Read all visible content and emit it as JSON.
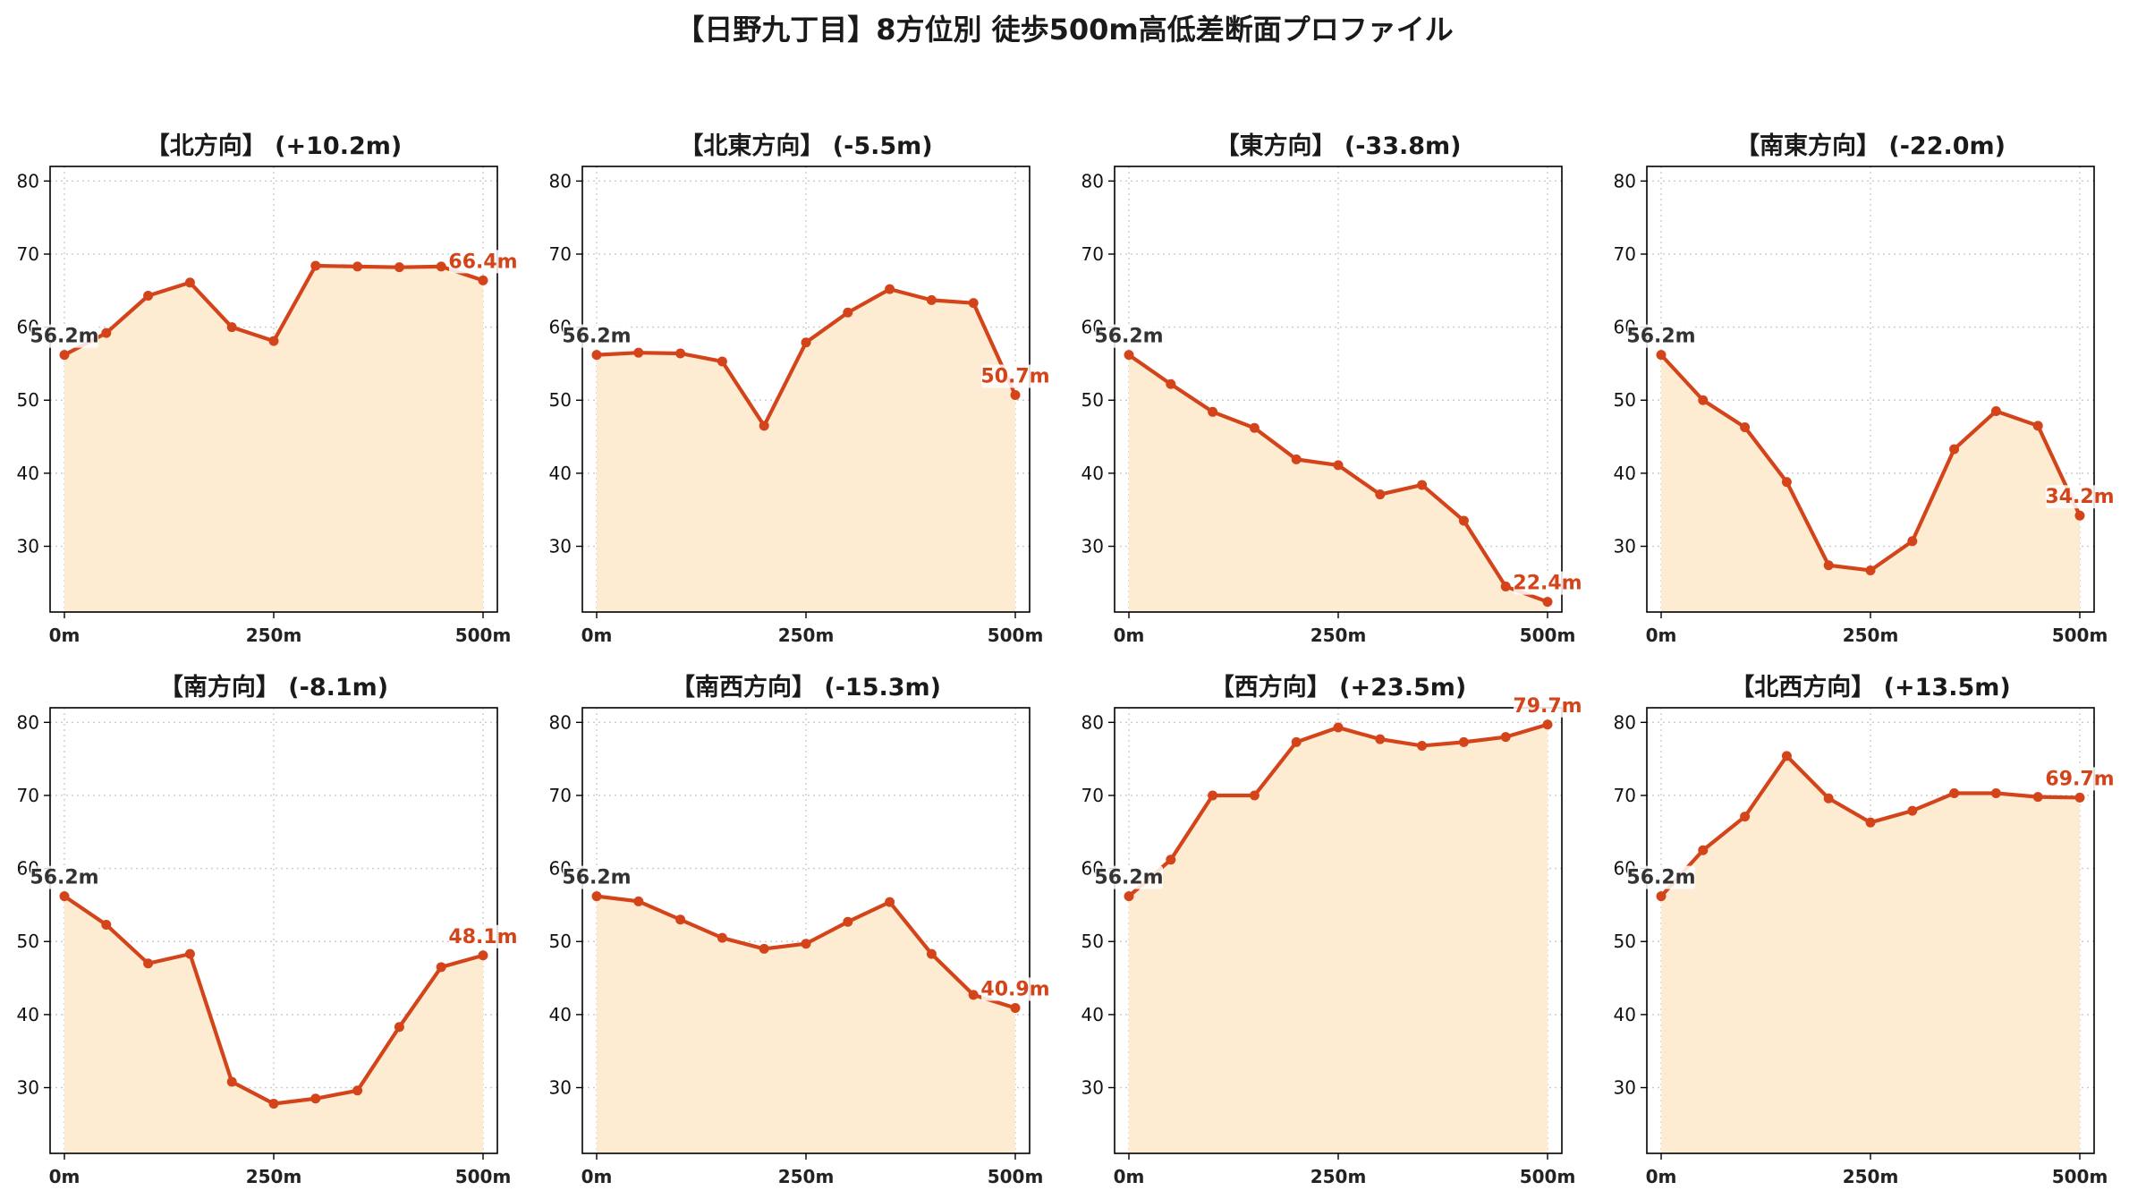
{
  "title": "【日野九丁目】8方位別 徒歩500m高低差断面プロファイル",
  "colors": {
    "line": "#d4441a",
    "fill": "#fdebd2",
    "start_label": "#333333",
    "end_label": "#d4441a",
    "grid": "#cccccc",
    "axis": "#000000"
  },
  "chart_data": [
    {
      "type": "area",
      "title": "【北方向】 (+10.2m)",
      "x": [
        0,
        50,
        100,
        150,
        200,
        250,
        300,
        350,
        400,
        450,
        500
      ],
      "y": [
        56.2,
        59.2,
        64.3,
        66.1,
        60.0,
        58.1,
        68.4,
        68.3,
        68.2,
        68.3,
        66.4
      ],
      "start_label": "56.2m",
      "end_label": "66.4m",
      "xticks": [
        "0m",
        "250m",
        "500m"
      ],
      "yticks": [
        30,
        40,
        50,
        60,
        70,
        80
      ],
      "xlim": [
        0,
        500
      ],
      "ylim": [
        21,
        82
      ],
      "grid": true
    },
    {
      "type": "area",
      "title": "【北東方向】 (-5.5m)",
      "x": [
        0,
        50,
        100,
        150,
        200,
        250,
        300,
        350,
        400,
        450,
        500
      ],
      "y": [
        56.2,
        56.5,
        56.4,
        55.3,
        46.5,
        57.9,
        62.0,
        65.2,
        63.7,
        63.3,
        50.7
      ],
      "start_label": "56.2m",
      "end_label": "50.7m",
      "xticks": [
        "0m",
        "250m",
        "500m"
      ],
      "yticks": [
        30,
        40,
        50,
        60,
        70,
        80
      ],
      "xlim": [
        0,
        500
      ],
      "ylim": [
        21,
        82
      ],
      "grid": true
    },
    {
      "type": "area",
      "title": "【東方向】 (-33.8m)",
      "x": [
        0,
        50,
        100,
        150,
        200,
        250,
        300,
        350,
        400,
        450,
        500
      ],
      "y": [
        56.2,
        52.2,
        48.4,
        46.2,
        41.9,
        41.1,
        37.1,
        38.4,
        33.5,
        24.5,
        22.4
      ],
      "start_label": "56.2m",
      "end_label": "22.4m",
      "xticks": [
        "0m",
        "250m",
        "500m"
      ],
      "yticks": [
        30,
        40,
        50,
        60,
        70,
        80
      ],
      "xlim": [
        0,
        500
      ],
      "ylim": [
        21,
        82
      ],
      "grid": true
    },
    {
      "type": "area",
      "title": "【南東方向】 (-22.0m)",
      "x": [
        0,
        50,
        100,
        150,
        200,
        250,
        300,
        350,
        400,
        450,
        500
      ],
      "y": [
        56.2,
        50.0,
        46.3,
        38.8,
        27.4,
        26.7,
        30.7,
        43.3,
        48.5,
        46.5,
        34.2
      ],
      "start_label": "56.2m",
      "end_label": "34.2m",
      "xticks": [
        "0m",
        "250m",
        "500m"
      ],
      "yticks": [
        30,
        40,
        50,
        60,
        70,
        80
      ],
      "xlim": [
        0,
        500
      ],
      "ylim": [
        21,
        82
      ],
      "grid": true
    },
    {
      "type": "area",
      "title": "【南方向】 (-8.1m)",
      "x": [
        0,
        50,
        100,
        150,
        200,
        250,
        300,
        350,
        400,
        450,
        500
      ],
      "y": [
        56.2,
        52.3,
        47.0,
        48.3,
        30.8,
        27.8,
        28.5,
        29.6,
        38.3,
        46.5,
        48.1
      ],
      "start_label": "56.2m",
      "end_label": "48.1m",
      "xticks": [
        "0m",
        "250m",
        "500m"
      ],
      "yticks": [
        30,
        40,
        50,
        60,
        70,
        80
      ],
      "xlim": [
        0,
        500
      ],
      "ylim": [
        21,
        82
      ],
      "grid": true
    },
    {
      "type": "area",
      "title": "【南西方向】 (-15.3m)",
      "x": [
        0,
        50,
        100,
        150,
        200,
        250,
        300,
        350,
        400,
        450,
        500
      ],
      "y": [
        56.2,
        55.5,
        53.0,
        50.5,
        49.0,
        49.7,
        52.7,
        55.4,
        48.3,
        42.7,
        40.9
      ],
      "start_label": "56.2m",
      "end_label": "40.9m",
      "xticks": [
        "0m",
        "250m",
        "500m"
      ],
      "yticks": [
        30,
        40,
        50,
        60,
        70,
        80
      ],
      "xlim": [
        0,
        500
      ],
      "ylim": [
        21,
        82
      ],
      "grid": true
    },
    {
      "type": "area",
      "title": "【西方向】 (+23.5m)",
      "x": [
        0,
        50,
        100,
        150,
        200,
        250,
        300,
        350,
        400,
        450,
        500
      ],
      "y": [
        56.2,
        61.2,
        70.0,
        70.0,
        77.3,
        79.3,
        77.7,
        76.8,
        77.3,
        78.0,
        79.7
      ],
      "start_label": "56.2m",
      "end_label": "79.7m",
      "xticks": [
        "0m",
        "250m",
        "500m"
      ],
      "yticks": [
        30,
        40,
        50,
        60,
        70,
        80
      ],
      "xlim": [
        0,
        500
      ],
      "ylim": [
        21,
        82
      ],
      "grid": true
    },
    {
      "type": "area",
      "title": "【北西方向】 (+13.5m)",
      "x": [
        0,
        50,
        100,
        150,
        200,
        250,
        300,
        350,
        400,
        450,
        500
      ],
      "y": [
        56.2,
        62.5,
        67.1,
        75.4,
        69.6,
        66.3,
        67.9,
        70.3,
        70.3,
        69.8,
        69.7
      ],
      "start_label": "56.2m",
      "end_label": "69.7m",
      "xticks": [
        "0m",
        "250m",
        "500m"
      ],
      "yticks": [
        30,
        40,
        50,
        60,
        70,
        80
      ],
      "xlim": [
        0,
        500
      ],
      "ylim": [
        21,
        82
      ],
      "grid": true
    }
  ]
}
